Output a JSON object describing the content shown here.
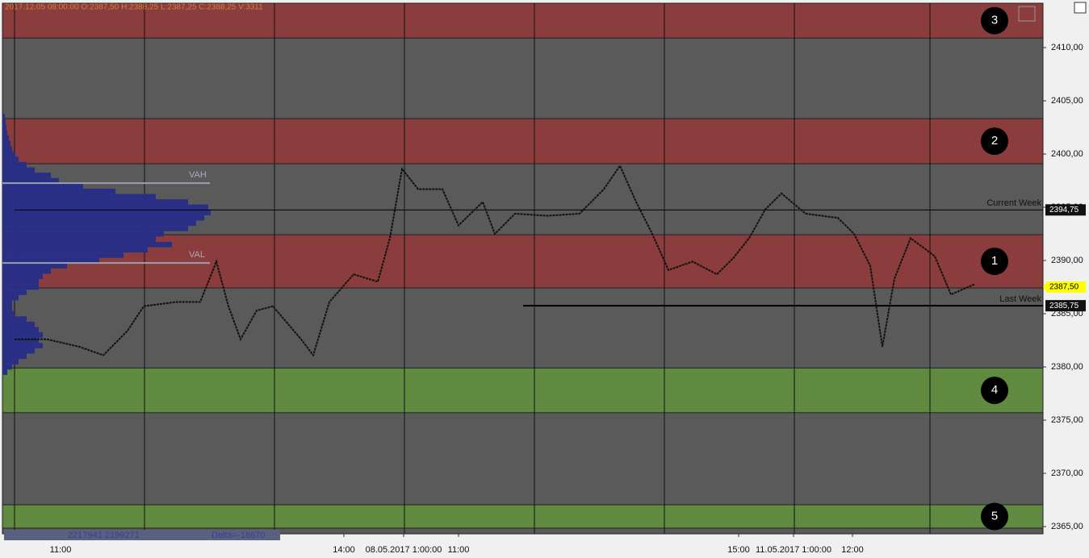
{
  "chart_data": {
    "type": "line",
    "header": "2017.12.05 08:00:00   O:2387,50   H:2388,25   L:2387,25   C:2388,25   V:3311",
    "x": [
      0,
      8,
      16,
      22,
      28,
      32,
      40,
      46,
      50,
      53,
      56,
      60,
      64,
      71,
      74,
      78,
      84,
      90,
      93,
      96,
      100,
      106,
      110,
      116,
      119,
      124,
      132,
      140,
      146,
      150,
      154,
      158,
      162,
      168,
      174,
      178,
      182,
      186,
      190,
      196,
      204,
      208,
      212,
      215,
      218,
      222,
      228,
      232,
      238
    ],
    "series": [
      {
        "name": "Price",
        "color": "#111111",
        "values": [
          2382.6,
          2382.6,
          2381.9,
          2381.1,
          2383.4,
          2385.7,
          2386.1,
          2386.1,
          2389.9,
          2385.7,
          2382.6,
          2385.3,
          2385.7,
          2382.6,
          2381.1,
          2386.1,
          2388.7,
          2388.0,
          2392.1,
          2398.6,
          2396.7,
          2396.7,
          2393.3,
          2395.5,
          2392.5,
          2394.4,
          2394.2,
          2394.4,
          2396.7,
          2398.9,
          2395.5,
          2392.5,
          2389.1,
          2389.9,
          2388.7,
          2390.2,
          2392.1,
          2394.8,
          2396.3,
          2394.4,
          2394.0,
          2392.5,
          2389.5,
          2381.9,
          2388.3,
          2392.1,
          2390.4,
          2386.8,
          2387.8
        ]
      }
    ],
    "xlim": [
      0,
      254.8
    ],
    "ylim": [
      2414.17,
      2364.32
    ],
    "yticks": [
      {
        "value": 2410,
        "label": "2410,00"
      },
      {
        "value": 2405,
        "label": "2405,00"
      },
      {
        "value": 2400,
        "label": "2400,00"
      },
      {
        "value": 2395,
        "label": "2395,00"
      },
      {
        "value": 2390,
        "label": "2390,00"
      },
      {
        "value": 2385,
        "label": "2385,00"
      },
      {
        "value": 2380,
        "label": "2380,00"
      },
      {
        "value": 2375,
        "label": "2375,00"
      },
      {
        "value": 2370,
        "label": "2370,00"
      },
      {
        "value": 2365,
        "label": "2365,00"
      }
    ],
    "xticks": [
      {
        "value": 11.4,
        "label": "11:00"
      },
      {
        "value": 81.6,
        "label": "14:00"
      },
      {
        "value": 96.4,
        "label": "08.05.2017 1:00:00"
      },
      {
        "value": 110,
        "label": "11:00"
      },
      {
        "value": 179.4,
        "label": "15:00"
      },
      {
        "value": 193,
        "label": "11.05.2017 1:00:00"
      },
      {
        "value": 207.6,
        "label": "12:00"
      }
    ],
    "zones": [
      {
        "label": "3",
        "top": 2414.17,
        "bottom": 2410.9,
        "color": "#8b3c3c"
      },
      {
        "label": "2",
        "top": 2403.33,
        "bottom": 2399.09,
        "color": "#8b3c3c"
      },
      {
        "label": "1",
        "top": 2392.42,
        "bottom": 2387.42,
        "color": "#8b3c3c"
      },
      {
        "label": "4",
        "top": 2379.9,
        "bottom": 2375.7,
        "color": "#5f8a3f"
      },
      {
        "label": "5",
        "top": 2367.05,
        "bottom": 2364.85,
        "color": "#5f8a3f"
      }
    ],
    "levels": [
      {
        "label": "Current Week",
        "value": 2394.75,
        "price_label": "2394,75",
        "start": 0
      },
      {
        "label": "Last Week",
        "value": 2385.75,
        "price_label": "2385,75",
        "start": 126
      }
    ],
    "last_price": {
      "value": 2387.5,
      "label": "2387,50"
    },
    "value_area": [
      {
        "label": "VAH",
        "value": 2397.27
      },
      {
        "label": "VAL",
        "value": 2389.77
      }
    ],
    "profile": {
      "color": "#2a2f86",
      "prices": [
        2403.5,
        2403,
        2402.5,
        2402,
        2401.5,
        2401,
        2400.5,
        2400,
        2399.5,
        2399,
        2398.5,
        2398,
        2397.5,
        2397,
        2396.5,
        2396,
        2395.5,
        2395,
        2394.5,
        2394,
        2393.5,
        2393,
        2392.5,
        2392,
        2391.5,
        2391,
        2390.5,
        2390,
        2389.5,
        2389,
        2388.5,
        2388,
        2387.5,
        2387,
        2386.5,
        2386,
        2385.5,
        2385,
        2384.5,
        2384,
        2383.5,
        2383,
        2382.5,
        2382,
        2381.5,
        2381,
        2380.5,
        2380,
        2379.5
      ],
      "volumes": [
        3,
        4,
        5,
        6,
        8,
        10,
        12,
        16,
        20,
        30,
        40,
        60,
        70,
        100,
        140,
        190,
        230,
        255,
        258,
        250,
        240,
        230,
        200,
        190,
        210,
        180,
        150,
        120,
        80,
        60,
        50,
        45,
        45,
        30,
        20,
        12,
        12,
        15,
        30,
        40,
        45,
        50,
        45,
        50,
        40,
        30,
        20,
        12,
        6
      ]
    },
    "footer": {
      "volumes": "2217941 2199271",
      "delta": "Delta=-18670"
    }
  }
}
